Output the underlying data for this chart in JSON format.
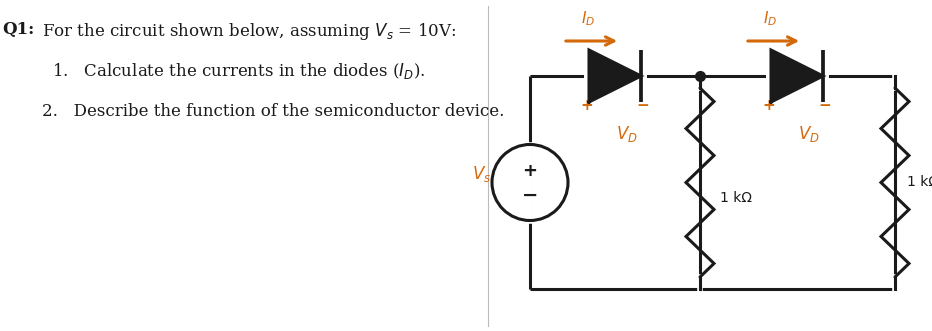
{
  "bg_color": "#ffffff",
  "text_color": "#1a1a1a",
  "circuit_color": "#1a1a1a",
  "orange_color": "#d4690a",
  "fig_width": 9.32,
  "fig_height": 3.31,
  "dpi": 100,
  "title": "Q1: For the circuit shown below, assuming $V_s$ = 10V:",
  "item1": "1.   Calculate the currents in the diodes ($I_D$).",
  "item2": "2.   Describe the function of the semiconductor device.",
  "resistor_label": "1 kΩ",
  "vs_label": "$V_s$",
  "vd_label": "$V_D$",
  "id_label": "$I_D$",
  "plus": "+",
  "minus": "−",
  "circ_plus": "+",
  "circ_minus": "−"
}
